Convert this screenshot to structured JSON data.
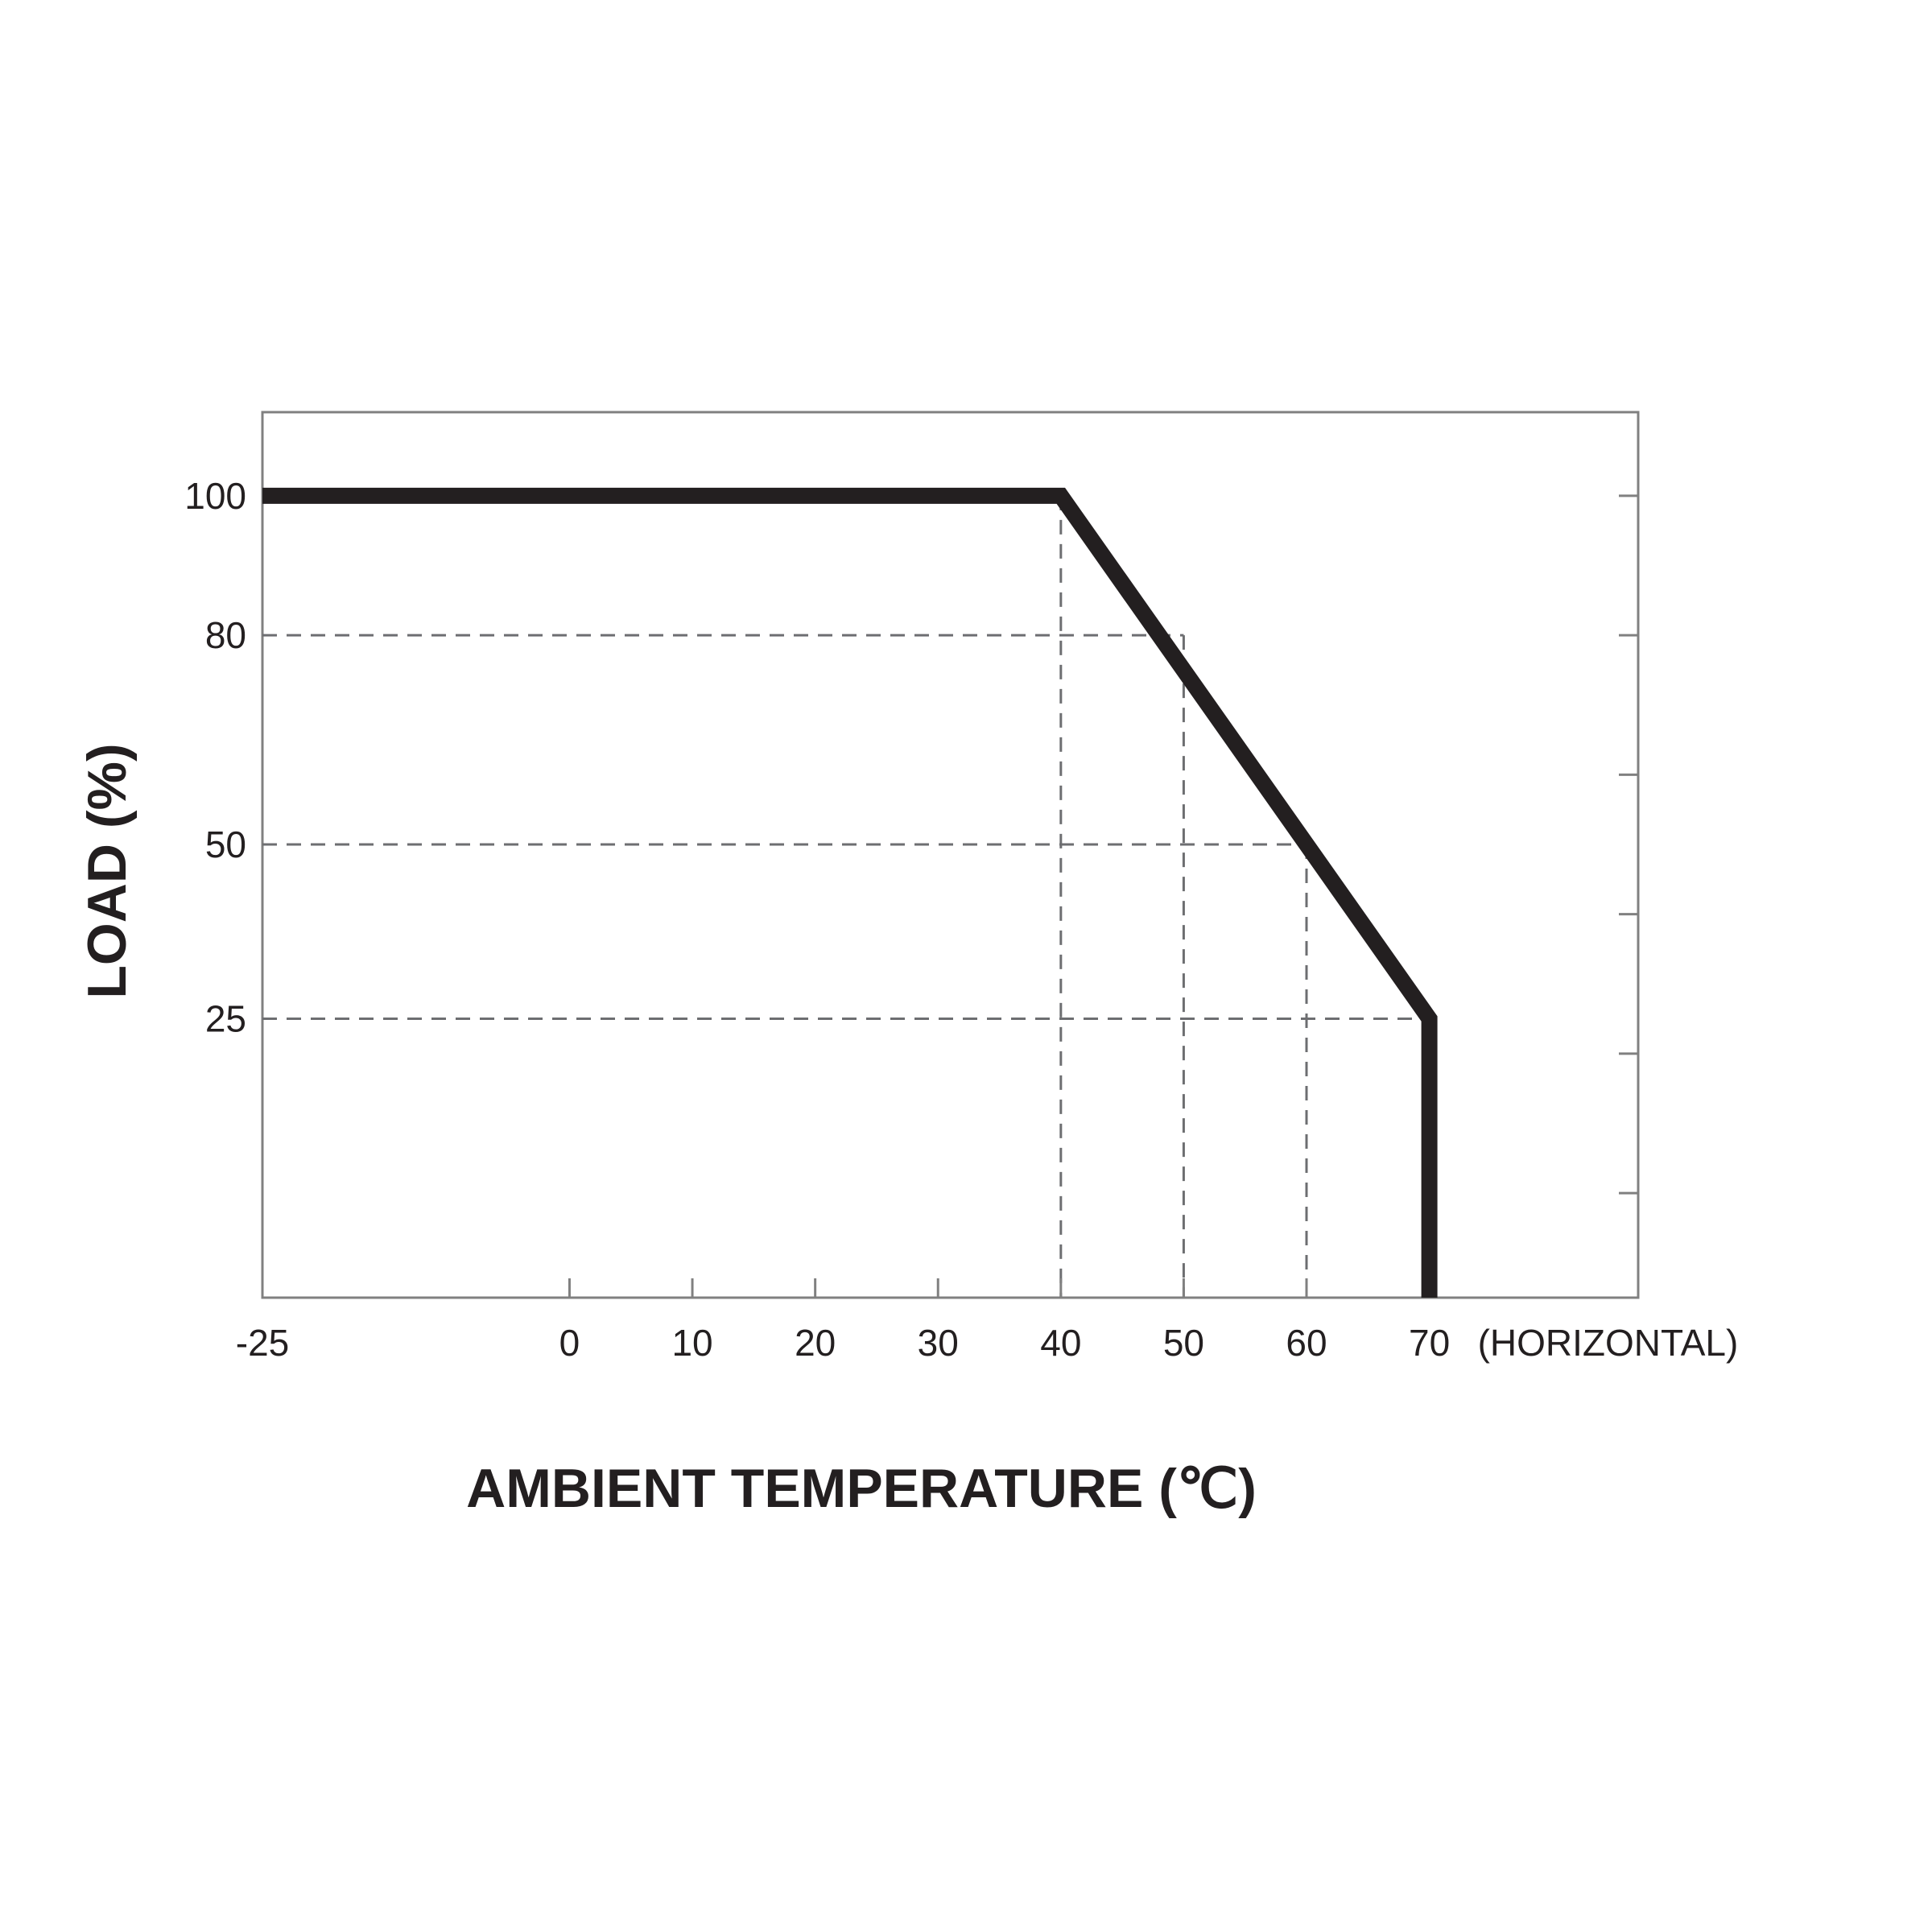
{
  "chart_data": {
    "type": "line",
    "xlabel": "AMBIENT TEMPERATURE (℃)",
    "ylabel": "LOAD (%)",
    "x_note": "(HORIZONTAL)",
    "x_ticks": [
      -25,
      0,
      10,
      20,
      30,
      40,
      50,
      60,
      70
    ],
    "x_tick_labels": [
      "-25",
      "0",
      "10",
      "20",
      "30",
      "40",
      "50",
      "60",
      "70"
    ],
    "y_ticks": [
      25,
      50,
      80,
      100
    ],
    "y_tick_labels": [
      "25",
      "50",
      "80",
      "100"
    ],
    "xlim": [
      -25,
      87
    ],
    "ylim": [
      -15,
      112
    ],
    "right_axis_ticks": [
      0,
      20,
      40,
      60,
      80,
      100
    ],
    "grid": "dashed guide lines",
    "series": [
      {
        "x": [
          -25,
          40,
          70,
          70
        ],
        "y": [
          100,
          100,
          25,
          -15
        ]
      }
    ],
    "guides": [
      {
        "x": 40,
        "y": 100
      },
      {
        "x": 50,
        "y": 80
      },
      {
        "x": 60,
        "y": 50
      },
      {
        "x": 70,
        "y": 25
      }
    ],
    "colors": {
      "line": "#231f20",
      "axis": "#808080",
      "guide": "#6d6e71",
      "text": "#231f20"
    }
  }
}
